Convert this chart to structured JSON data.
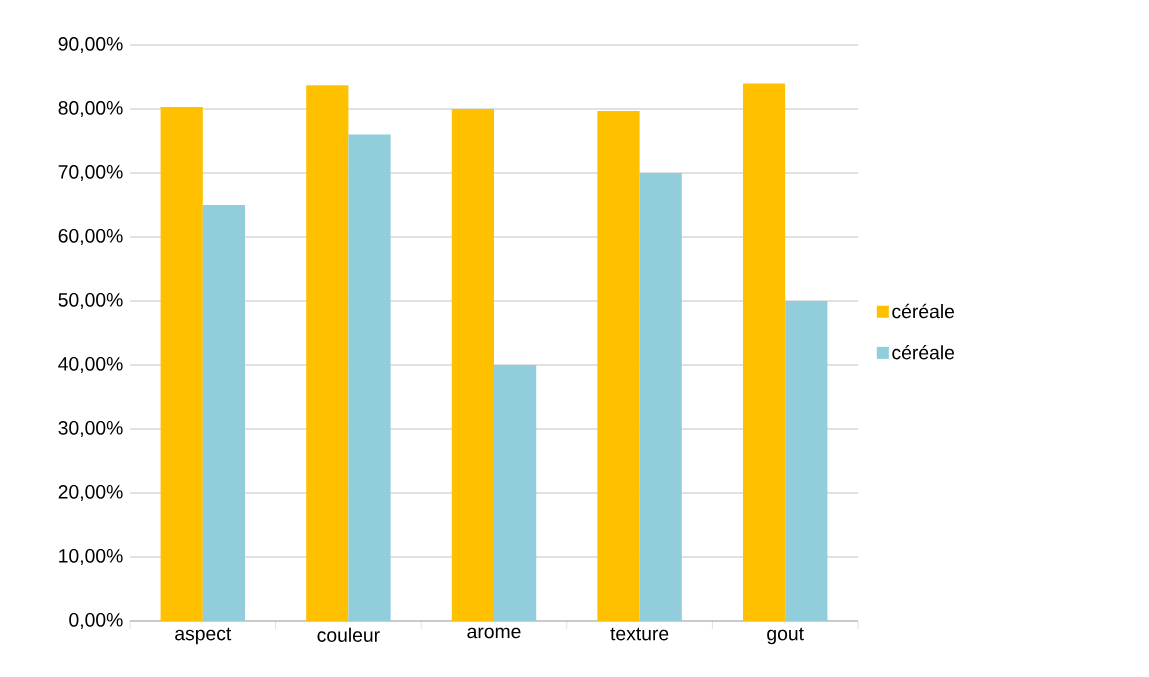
{
  "chart_data": {
    "type": "bar",
    "categories": [
      "aspect",
      "couleur",
      "arome",
      "texture",
      "gout"
    ],
    "series": [
      {
        "name": "céréale",
        "color": "#ffc000",
        "values": [
          80.3,
          83.7,
          80,
          79.7,
          84
        ]
      },
      {
        "name": "céréale",
        "color": "#92cddc",
        "values": [
          65,
          76,
          40,
          70,
          50
        ]
      }
    ],
    "ylim": [
      0,
      90
    ],
    "yticks": [
      {
        "value": 0,
        "label": "0,00%"
      },
      {
        "value": 10,
        "label": "10,00%"
      },
      {
        "value": 20,
        "label": "20,00%"
      },
      {
        "value": 30,
        "label": "30,00%"
      },
      {
        "value": 40,
        "label": "40,00%"
      },
      {
        "value": 50,
        "label": "50,00%"
      },
      {
        "value": 60,
        "label": "60,00%"
      },
      {
        "value": 70,
        "label": "70,00%"
      },
      {
        "value": 80,
        "label": "80,00%"
      },
      {
        "value": 90,
        "label": "90,00%"
      }
    ],
    "grid": "y",
    "legend": "right"
  }
}
